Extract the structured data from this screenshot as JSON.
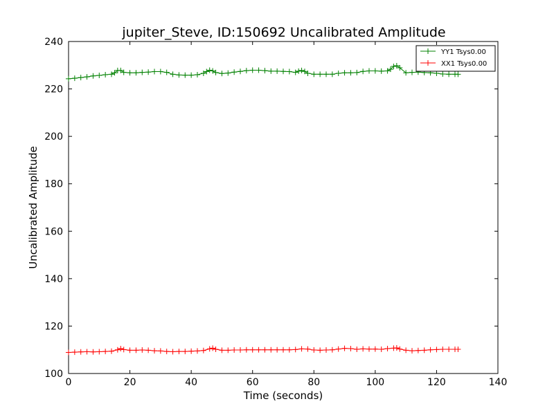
{
  "chart_data": {
    "type": "line",
    "title": "jupiter_Steve, ID:150692 Uncalibrated Amplitude",
    "xlabel": "Time (seconds)",
    "ylabel": "Uncalibrated Amplitude",
    "xlim": [
      0,
      140
    ],
    "ylim": [
      100,
      240
    ],
    "xticks": [
      "0",
      "20",
      "40",
      "60",
      "80",
      "100",
      "120",
      "140"
    ],
    "yticks": [
      "100",
      "120",
      "140",
      "160",
      "180",
      "200",
      "220",
      "240"
    ],
    "grid": false,
    "legend_position": "top-right",
    "marker": "+",
    "series": [
      {
        "name": "YY1 Tsys0.00",
        "color": "#008000",
        "x": [
          0,
          2,
          4,
          6,
          8,
          10,
          12,
          14,
          15,
          16,
          17,
          18,
          20,
          22,
          24,
          26,
          28,
          30,
          32,
          34,
          36,
          38,
          40,
          42,
          44,
          45,
          46,
          47,
          48,
          50,
          52,
          54,
          56,
          58,
          60,
          62,
          64,
          66,
          68,
          70,
          72,
          74,
          75,
          76,
          77,
          78,
          80,
          82,
          84,
          86,
          88,
          90,
          92,
          94,
          96,
          98,
          100,
          102,
          104,
          105,
          106,
          107,
          108,
          110,
          112,
          114,
          116,
          118,
          120,
          122,
          124,
          126,
          127
        ],
        "values": [
          224.3,
          224.5,
          224.8,
          225.1,
          225.5,
          225.7,
          226.0,
          226.2,
          226.8,
          227.8,
          227.8,
          227.0,
          226.8,
          226.8,
          227.0,
          227.1,
          227.3,
          227.3,
          227.0,
          226.2,
          225.9,
          225.8,
          225.8,
          226.0,
          226.6,
          227.3,
          227.9,
          227.6,
          226.9,
          226.5,
          226.7,
          227.1,
          227.4,
          227.7,
          227.9,
          227.9,
          227.7,
          227.5,
          227.5,
          227.4,
          227.3,
          227.0,
          227.5,
          227.8,
          227.4,
          226.6,
          226.2,
          226.2,
          226.2,
          226.2,
          226.6,
          226.8,
          226.8,
          226.9,
          227.4,
          227.6,
          227.6,
          227.5,
          227.6,
          228.3,
          229.5,
          229.8,
          228.9,
          226.8,
          227.0,
          227.1,
          226.9,
          226.8,
          226.6,
          226.3,
          226.2,
          226.2,
          226.2
        ]
      },
      {
        "name": "XX1 Tsys0.00",
        "color": "#ff0000",
        "x": [
          0,
          2,
          4,
          6,
          8,
          10,
          12,
          14,
          16,
          17,
          18,
          20,
          22,
          24,
          26,
          28,
          30,
          32,
          34,
          36,
          38,
          40,
          42,
          44,
          46,
          47,
          48,
          50,
          52,
          54,
          56,
          58,
          60,
          62,
          64,
          66,
          68,
          70,
          72,
          74,
          76,
          78,
          80,
          82,
          84,
          86,
          88,
          90,
          92,
          94,
          96,
          98,
          100,
          102,
          104,
          106,
          107,
          108,
          110,
          112,
          114,
          116,
          118,
          120,
          122,
          124,
          126,
          127
        ],
        "values": [
          108.9,
          109.0,
          109.1,
          109.2,
          109.1,
          109.2,
          109.3,
          109.4,
          110.0,
          110.5,
          110.1,
          109.8,
          109.8,
          109.9,
          109.8,
          109.6,
          109.5,
          109.3,
          109.2,
          109.3,
          109.3,
          109.4,
          109.5,
          109.7,
          110.4,
          110.7,
          110.2,
          109.8,
          109.8,
          109.9,
          109.9,
          110.0,
          110.0,
          110.0,
          110.0,
          110.0,
          110.0,
          110.0,
          110.0,
          110.1,
          110.4,
          110.3,
          109.9,
          109.8,
          109.9,
          110.0,
          110.3,
          110.6,
          110.5,
          110.2,
          110.4,
          110.3,
          110.3,
          110.2,
          110.5,
          110.7,
          110.8,
          110.3,
          109.8,
          109.6,
          109.7,
          109.8,
          110.0,
          110.1,
          110.2,
          110.2,
          110.2,
          110.2
        ]
      }
    ]
  }
}
